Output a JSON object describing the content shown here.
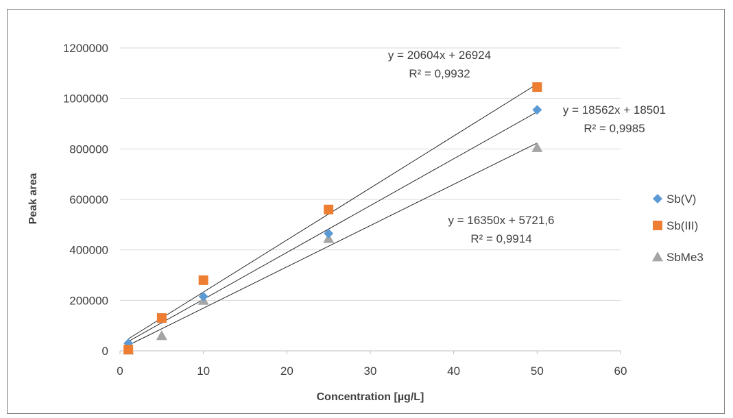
{
  "chart_data": {
    "type": "scatter",
    "xlabel": "Concentration [µg/L]",
    "ylabel": "Peak area",
    "xlim": [
      0,
      60
    ],
    "ylim": [
      0,
      1200000
    ],
    "x_ticks": [
      "0",
      "10",
      "20",
      "30",
      "40",
      "50",
      "60"
    ],
    "y_ticks": [
      "0",
      "200000",
      "400000",
      "600000",
      "800000",
      "1000000",
      "1200000"
    ],
    "grid": "horizontal",
    "legend_position": "right",
    "series": [
      {
        "name": "Sb(V)",
        "marker": "diamond",
        "color": "#5b9bd5",
        "x": [
          1,
          5,
          10,
          25,
          50
        ],
        "y": [
          30000,
          125000,
          215000,
          465000,
          955000
        ],
        "trendline": {
          "slope": 18562,
          "intercept": 18501,
          "equation": "y = 18562x + 18501",
          "r2": "R² = 0,9985"
        }
      },
      {
        "name": "Sb(III)",
        "marker": "square",
        "color": "#ed7d31",
        "x": [
          1,
          5,
          10,
          25,
          50
        ],
        "y": [
          5000,
          130000,
          280000,
          560000,
          1045000
        ],
        "trendline": {
          "slope": 20604,
          "intercept": 26924,
          "equation": "y = 20604x + 26924",
          "r2": "R² = 0,9932"
        }
      },
      {
        "name": "SbMe3",
        "marker": "triangle",
        "color": "#a5a5a5",
        "x": [
          1,
          5,
          10,
          25,
          50
        ],
        "y": [
          3000,
          60000,
          200000,
          445000,
          805000
        ],
        "trendline": {
          "slope": 16350,
          "intercept": 5721.6,
          "equation": "y = 16350x + 5721,6",
          "r2": "R² = 0,9914"
        }
      }
    ]
  }
}
